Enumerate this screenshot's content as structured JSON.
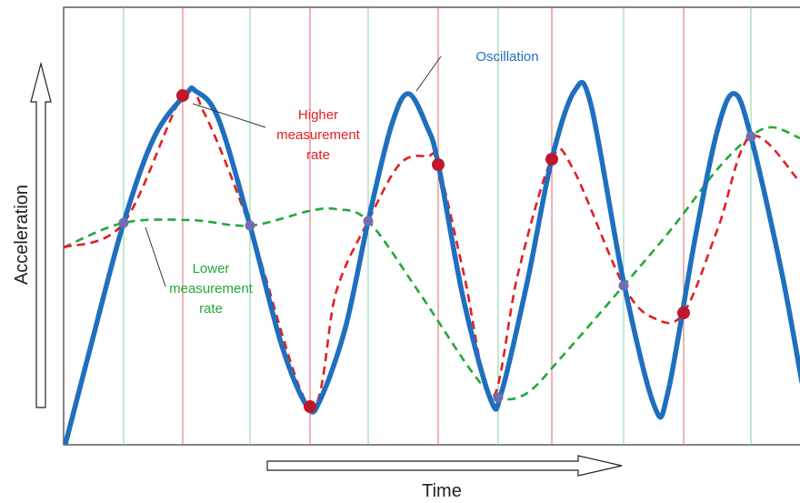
{
  "labels": {
    "y_axis": "Acceleration",
    "x_axis": "Time",
    "oscillation": "Oscillation",
    "higher_rate": [
      "Higher",
      "measurement",
      "rate"
    ],
    "lower_rate": [
      "Lower",
      "measurement",
      "rate"
    ]
  },
  "colors": {
    "oscillation": "#1f6fbf",
    "higher_rate": "#e02020",
    "lower_rate": "#22a83a",
    "sample_line_higher": "#e06a6a",
    "sample_line_lower": "#7fd3a0",
    "frame": "#333333",
    "higher_marker": "#c0182a",
    "lower_marker": "#6f6fb0"
  }
}
